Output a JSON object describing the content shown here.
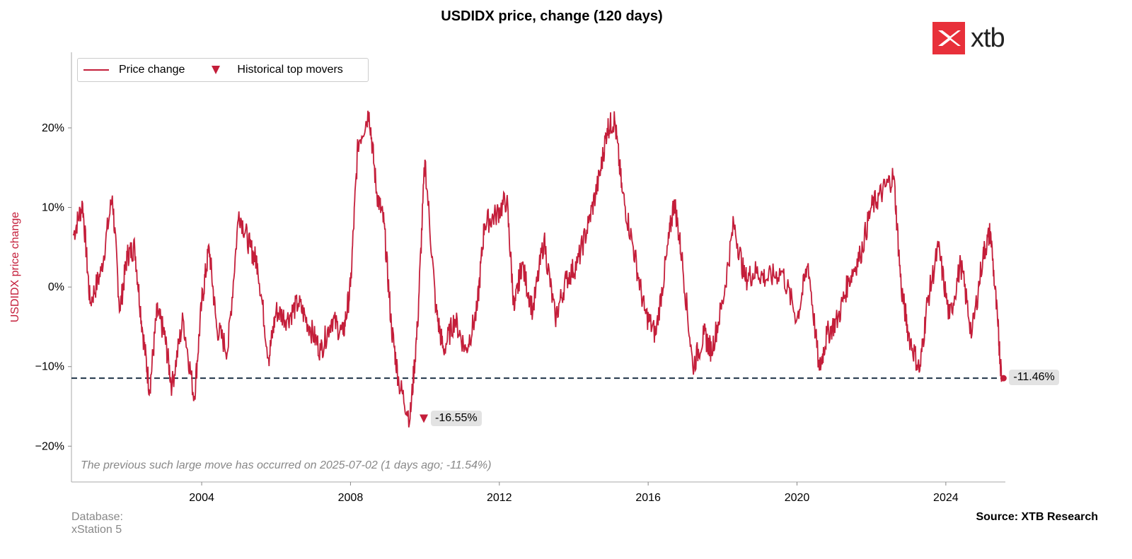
{
  "title": "USDIDX price, change (120 days)",
  "logo_text": "xtb",
  "footer": {
    "database": "Database:\nxStation 5",
    "source": "Source: XTB Research"
  },
  "legend": {
    "price_change": "Price change",
    "top_movers": "Historical top movers"
  },
  "note": "The previous such large move has occurred on 2025-07-02 (1 days ago; -11.54%)",
  "annotations": {
    "low": "-16.55%",
    "last": "-11.46%"
  },
  "colors": {
    "series": "#c41e3a",
    "reference_line": "#1f3347",
    "logo": "#e8303a"
  },
  "chart_data": {
    "type": "line",
    "title": "USDIDX price, change (120 days)",
    "ylabel": "USDIDX price change",
    "xlabel": "",
    "xlim": [
      2000.5,
      2025.6
    ],
    "ylim": [
      -24.5,
      29.5
    ],
    "x_ticks": [
      2004,
      2008,
      2012,
      2016,
      2020,
      2024
    ],
    "y_ticks": [
      20,
      10,
      0,
      -10,
      -20
    ],
    "y_tick_labels": [
      "20%",
      "10%",
      "0%",
      "−10%",
      "−20%"
    ],
    "reference_line": -11.46,
    "series": [
      {
        "name": "Price change",
        "x": [
          2000.55,
          2000.8,
          2001.0,
          2001.3,
          2001.6,
          2001.8,
          2002.0,
          2002.2,
          2002.4,
          2002.6,
          2002.8,
          2003.0,
          2003.2,
          2003.5,
          2003.8,
          2004.0,
          2004.2,
          2004.4,
          2004.7,
          2005.0,
          2005.3,
          2005.5,
          2005.8,
          2006.0,
          2006.3,
          2006.6,
          2006.9,
          2007.2,
          2007.5,
          2007.8,
          2008.0,
          2008.2,
          2008.5,
          2008.7,
          2008.9,
          2009.1,
          2009.3,
          2009.6,
          2009.8,
          2010.0,
          2010.3,
          2010.5,
          2010.8,
          2011.1,
          2011.4,
          2011.6,
          2011.9,
          2012.2,
          2012.4,
          2012.6,
          2012.9,
          2013.2,
          2013.5,
          2013.8,
          2014.1,
          2014.4,
          2014.7,
          2014.9,
          2015.1,
          2015.3,
          2015.6,
          2015.9,
          2016.2,
          2016.5,
          2016.7,
          2016.9,
          2017.2,
          2017.5,
          2017.7,
          2018.0,
          2018.3,
          2018.6,
          2018.9,
          2019.2,
          2019.6,
          2020.0,
          2020.3,
          2020.6,
          2020.8,
          2021.1,
          2021.4,
          2021.7,
          2022.0,
          2022.3,
          2022.6,
          2022.8,
          2023.0,
          2023.3,
          2023.5,
          2023.8,
          2024.1,
          2024.4,
          2024.7,
          2025.0,
          2025.2,
          2025.4,
          2025.5
        ],
        "values": [
          6.5,
          10.5,
          -2,
          2,
          11.5,
          -3,
          4,
          5,
          -5,
          -13,
          -3,
          -6,
          -12.5,
          -4,
          -14,
          -2,
          5,
          -5,
          -8,
          9.5,
          5,
          3,
          -9,
          -3,
          -4,
          -2,
          -5,
          -8,
          -4,
          -6,
          0,
          18,
          22,
          12,
          8,
          -5,
          -12,
          -16.55,
          -5,
          16,
          -3,
          -8,
          -4,
          -8,
          -3,
          8,
          9,
          11,
          -3,
          3,
          -3,
          6,
          -4,
          1,
          3,
          8,
          14,
          20,
          21,
          12,
          5,
          -3,
          -6,
          4,
          11,
          4,
          -10,
          -6,
          -8,
          -2,
          8,
          1,
          2,
          1,
          2,
          -4,
          3,
          -10.5,
          -6,
          -4,
          1,
          4,
          10,
          12,
          14,
          0,
          -6,
          -10.5,
          -2,
          5,
          -4,
          3,
          -6,
          4,
          7,
          -5,
          -11.46
        ]
      }
    ],
    "markers": [
      {
        "label": "-16.55%",
        "x": 2009.97,
        "y": -16.55,
        "series": "Historical top movers"
      },
      {
        "label": "-11.46%",
        "x": 2025.55,
        "y": -11.46
      }
    ]
  }
}
